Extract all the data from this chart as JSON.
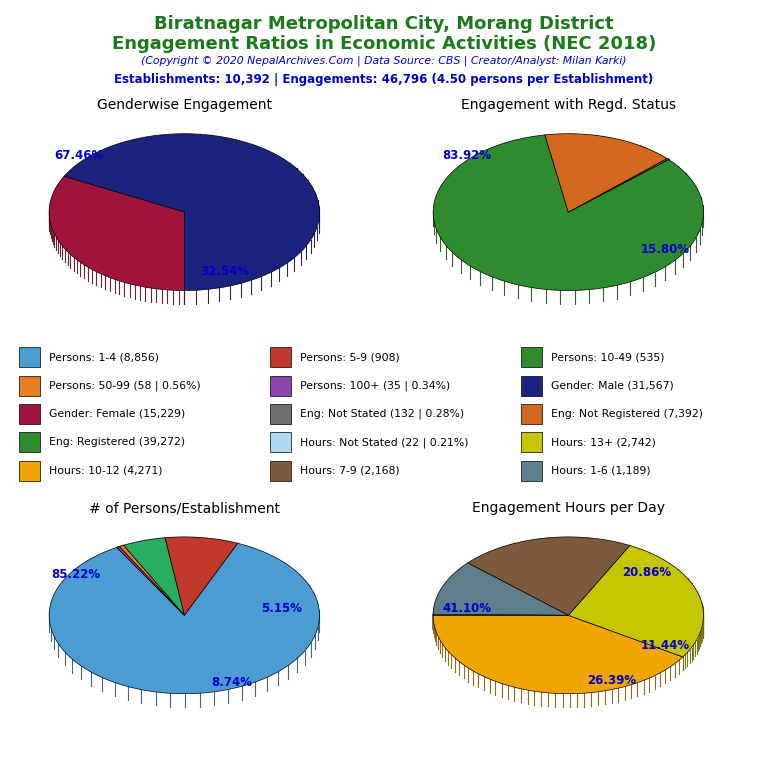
{
  "title_line1": "Biratnagar Metropolitan City, Morang District",
  "title_line2": "Engagement Ratios in Economic Activities (NEC 2018)",
  "copyright": "(Copyright © 2020 NepalArchives.Com | Data Source: CBS | Creator/Analyst: Milan Karki)",
  "stats": "Establishments: 10,392 | Engagements: 46,796 (4.50 persons per Establishment)",
  "title_color": "#1a7a1a",
  "copyright_color": "#0000cc",
  "stats_color": "#0000cc",
  "pie1_title": "Genderwise Engagement",
  "pie1_values": [
    67.46,
    32.54
  ],
  "pie1_colors": [
    "#1a237e",
    "#a0143c"
  ],
  "pie1_startangle": 270,
  "pie2_title": "Engagement with Regd. Status",
  "pie2_values": [
    83.92,
    0.28,
    15.8
  ],
  "pie2_colors": [
    "#2e8b2e",
    "#707070",
    "#d2691e"
  ],
  "pie2_startangle": 100,
  "pie3_title": "# of Persons/Establishment",
  "pie3_values": [
    85.22,
    8.74,
    5.15,
    0.56,
    0.34
  ],
  "pie3_colors": [
    "#4b9cd3",
    "#c0392b",
    "#27ae60",
    "#e67e22",
    "#8e44ad"
  ],
  "pie3_startangle": 120,
  "pie4_title": "Engagement Hours per Day",
  "pie4_values": [
    41.1,
    26.39,
    20.86,
    11.44,
    0.21
  ],
  "pie4_colors": [
    "#f0a500",
    "#c5c500",
    "#7d5a3c",
    "#607d8b",
    "#b0d8f0"
  ],
  "pie4_startangle": 180,
  "legend_items": [
    {
      "label": "Persons: 1-4 (8,856)",
      "color": "#4b9cd3"
    },
    {
      "label": "Persons: 5-9 (908)",
      "color": "#c0392b"
    },
    {
      "label": "Persons: 10-49 (535)",
      "color": "#2e8b2e"
    },
    {
      "label": "Persons: 50-99 (58 | 0.56%)",
      "color": "#e67e22"
    },
    {
      "label": "Persons: 100+ (35 | 0.34%)",
      "color": "#8e44ad"
    },
    {
      "label": "Gender: Male (31,567)",
      "color": "#1a237e"
    },
    {
      "label": "Gender: Female (15,229)",
      "color": "#a0143c"
    },
    {
      "label": "Eng: Not Stated (132 | 0.28%)",
      "color": "#707070"
    },
    {
      "label": "Eng: Not Registered (7,392)",
      "color": "#d2691e"
    },
    {
      "label": "Eng: Registered (39,272)",
      "color": "#2e8b2e"
    },
    {
      "label": "Hours: Not Stated (22 | 0.21%)",
      "color": "#b0d8f0"
    },
    {
      "label": "Hours: 13+ (2,742)",
      "color": "#c5c500"
    },
    {
      "label": "Hours: 10-12 (4,271)",
      "color": "#f0a500"
    },
    {
      "label": "Hours: 7-9 (2,168)",
      "color": "#7d5a3c"
    },
    {
      "label": "Hours: 1-6 (1,189)",
      "color": "#607d8b"
    }
  ]
}
